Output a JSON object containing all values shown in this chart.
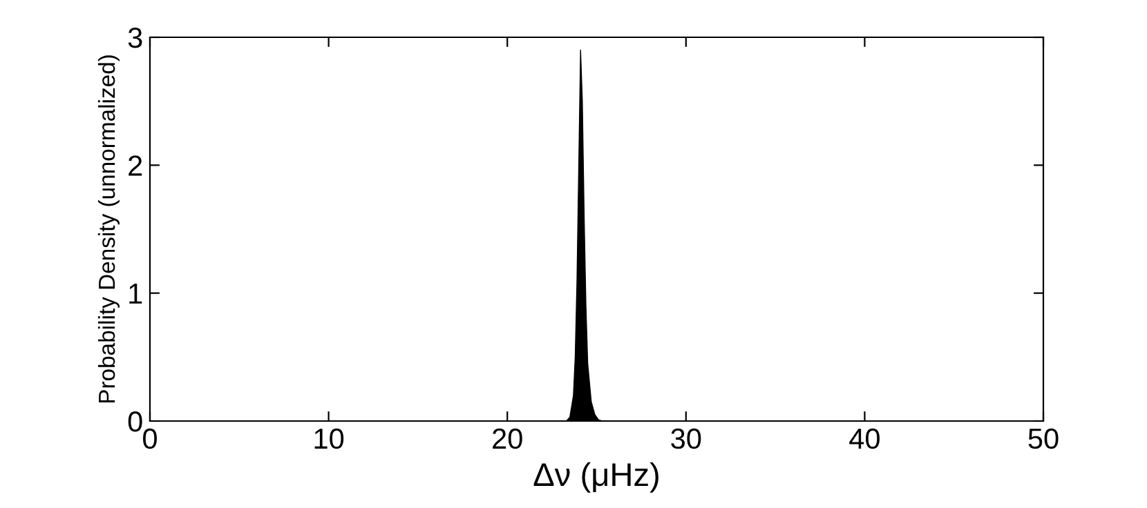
{
  "chart_data": {
    "type": "area",
    "xlabel": "Δν (μHz)",
    "ylabel": "Probability Density (unnormalized)",
    "x": [
      0,
      23.3,
      23.5,
      23.7,
      23.8,
      23.9,
      24.0,
      24.1,
      24.2,
      24.3,
      24.4,
      24.5,
      24.7,
      24.9,
      25.1,
      25.3,
      50
    ],
    "series": [
      {
        "color": "#000000",
        "values": [
          0,
          0,
          0.03,
          0.2,
          0.5,
          1.1,
          2.0,
          2.9,
          2.5,
          1.6,
          0.9,
          0.45,
          0.15,
          0.05,
          0.01,
          0,
          0
        ]
      }
    ],
    "xlim": [
      0,
      50
    ],
    "xticks": [
      0,
      10,
      20,
      30,
      40,
      50
    ],
    "ylim": [
      0,
      3
    ],
    "yticks": [
      0,
      1,
      2,
      3
    ],
    "grid": false,
    "legend": false
  }
}
